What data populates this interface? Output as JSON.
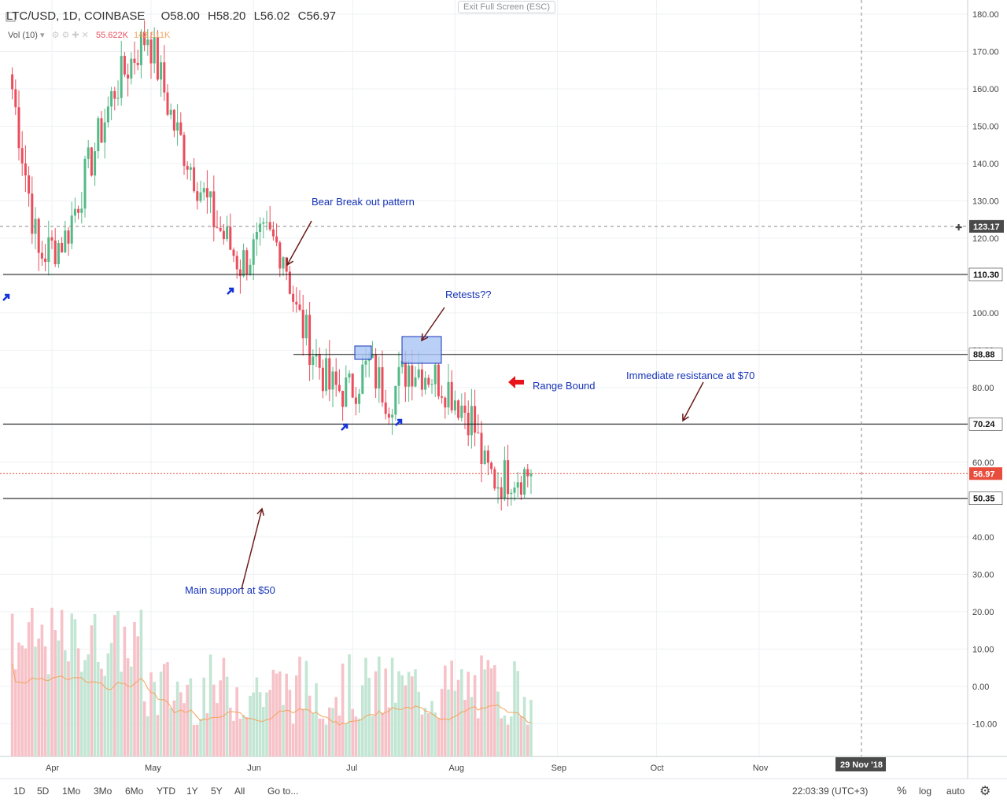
{
  "header": {
    "symbol": "LTC/USD, 1D, COINBASE",
    "open_label": "O",
    "open": "58.00",
    "high_label": "H",
    "high": "58.20",
    "low_label": "L",
    "low": "56.02",
    "close_label": "C",
    "close": "56.97",
    "vol_label": "Vol (10)",
    "vol_value": "55.622K",
    "vol_ma": "143.511K"
  },
  "exit_button": "Exit Full Screen (ESC)",
  "toolbar": {
    "ranges": [
      "1D",
      "5D",
      "1Mo",
      "3Mo",
      "6Mo",
      "YTD",
      "1Y",
      "5Y",
      "All"
    ],
    "goto": "Go to...",
    "clock": "22:03:39 (UTC+3)",
    "percent": "%",
    "log": "log",
    "auto": "auto"
  },
  "colors": {
    "up": "#53b987",
    "down": "#eb4d5c",
    "volume_up": "#c3e6d4",
    "volume_down": "#f6c2c8",
    "vol_ma": "#f5a35c",
    "annotation": "#1533b8",
    "arrow": "#6b1a1a",
    "price_line": "#e74c3c",
    "box": "#a9c4f5"
  },
  "chart_data": {
    "type": "candlestick",
    "title": "LTC/USD, 1D, COINBASE",
    "yaxis_ticks": [
      -10,
      0,
      10,
      20,
      30,
      40,
      50,
      60,
      70,
      80,
      90,
      100,
      110,
      120,
      130,
      140,
      150,
      160,
      170,
      180
    ],
    "xaxis_ticks": [
      "Apr",
      "May",
      "Jun",
      "Jul",
      "Aug",
      "Sep",
      "Oct",
      "Nov"
    ],
    "cursor_date_label": "29 Nov '18",
    "cursor_price_label": "123.17",
    "last_price_label": "56.97",
    "levels": [
      {
        "label": "110.30",
        "value": 110.3
      },
      {
        "label": "88.88",
        "value": 88.88
      },
      {
        "label": "70.24",
        "value": 70.24
      },
      {
        "label": "50.35",
        "value": 50.35
      }
    ],
    "annotations": [
      {
        "text": "Bear Break out pattern"
      },
      {
        "text": "Retests??"
      },
      {
        "text": "Range Bound"
      },
      {
        "text": "Immediate resistance at $70"
      },
      {
        "text": "Main support at $50"
      }
    ],
    "closes_keypoints": [
      {
        "date": "2018-03-20",
        "close": 160
      },
      {
        "date": "2018-03-28",
        "close": 115
      },
      {
        "date": "2018-04-05",
        "close": 120
      },
      {
        "date": "2018-04-20",
        "close": 160
      },
      {
        "date": "2018-04-30",
        "close": 175
      },
      {
        "date": "2018-05-08",
        "close": 150
      },
      {
        "date": "2018-05-20",
        "close": 125
      },
      {
        "date": "2018-05-28",
        "close": 113
      },
      {
        "date": "2018-06-05",
        "close": 120
      },
      {
        "date": "2018-06-10",
        "close": 117
      },
      {
        "date": "2018-06-14",
        "close": 100
      },
      {
        "date": "2018-06-24",
        "close": 80
      },
      {
        "date": "2018-06-30",
        "close": 79
      },
      {
        "date": "2018-07-06",
        "close": 86
      },
      {
        "date": "2018-07-12",
        "close": 77
      },
      {
        "date": "2018-07-18",
        "close": 86
      },
      {
        "date": "2018-07-24",
        "close": 84
      },
      {
        "date": "2018-07-30",
        "close": 80
      },
      {
        "date": "2018-08-06",
        "close": 72
      },
      {
        "date": "2018-08-10",
        "close": 58
      },
      {
        "date": "2018-08-14",
        "close": 55
      },
      {
        "date": "2018-08-18",
        "close": 57
      },
      {
        "date": "2018-08-24",
        "close": 56.97
      }
    ]
  }
}
